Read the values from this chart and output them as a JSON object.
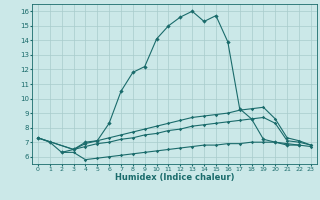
{
  "bg_color": "#cbe8e8",
  "grid_color": "#a8cccc",
  "line_color": "#1a6b6b",
  "xlabel": "Humidex (Indice chaleur)",
  "xlim": [
    -0.5,
    23.5
  ],
  "ylim": [
    5.5,
    16.5
  ],
  "yticks": [
    6,
    7,
    8,
    9,
    10,
    11,
    12,
    13,
    14,
    15,
    16
  ],
  "xticks": [
    0,
    1,
    2,
    3,
    4,
    5,
    6,
    7,
    8,
    9,
    10,
    11,
    12,
    13,
    14,
    15,
    16,
    17,
    18,
    19,
    20,
    21,
    22,
    23
  ],
  "curve1_x": [
    0,
    1,
    2,
    3,
    4,
    5,
    6,
    7,
    8,
    9,
    10,
    11,
    12,
    13,
    14,
    15,
    16,
    17,
    18,
    19,
    20,
    21,
    22
  ],
  "curve1_y": [
    7.3,
    7.0,
    6.3,
    6.5,
    7.0,
    7.1,
    8.3,
    10.5,
    11.8,
    12.2,
    14.1,
    15.0,
    15.6,
    16.0,
    15.3,
    15.7,
    13.9,
    9.3,
    8.6,
    7.2,
    7.0,
    6.8,
    6.8
  ],
  "curve2_x": [
    0,
    3,
    4,
    5,
    6,
    7,
    8,
    9,
    10,
    11,
    12,
    13,
    14,
    15,
    16,
    17,
    18,
    19,
    20,
    21,
    22,
    23
  ],
  "curve2_y": [
    7.3,
    6.5,
    6.9,
    7.1,
    7.3,
    7.5,
    7.7,
    7.9,
    8.1,
    8.3,
    8.5,
    8.7,
    8.8,
    8.9,
    9.0,
    9.2,
    9.3,
    9.4,
    8.6,
    7.3,
    7.1,
    6.8
  ],
  "curve3_x": [
    0,
    3,
    4,
    5,
    6,
    7,
    8,
    9,
    10,
    11,
    12,
    13,
    14,
    15,
    16,
    17,
    18,
    19,
    20,
    21,
    22,
    23
  ],
  "curve3_y": [
    7.3,
    6.5,
    6.7,
    6.9,
    7.0,
    7.2,
    7.3,
    7.5,
    7.6,
    7.8,
    7.9,
    8.1,
    8.2,
    8.3,
    8.4,
    8.5,
    8.6,
    8.7,
    8.3,
    7.1,
    7.0,
    6.8
  ],
  "curve4_x": [
    2,
    3,
    4,
    5,
    6,
    7,
    8,
    9,
    10,
    11,
    12,
    13,
    14,
    15,
    16,
    17,
    18,
    19,
    20,
    21,
    22,
    23
  ],
  "curve4_y": [
    6.3,
    6.3,
    5.8,
    5.9,
    6.0,
    6.1,
    6.2,
    6.3,
    6.4,
    6.5,
    6.6,
    6.7,
    6.8,
    6.8,
    6.9,
    6.9,
    7.0,
    7.0,
    7.0,
    6.9,
    6.8,
    6.7
  ]
}
